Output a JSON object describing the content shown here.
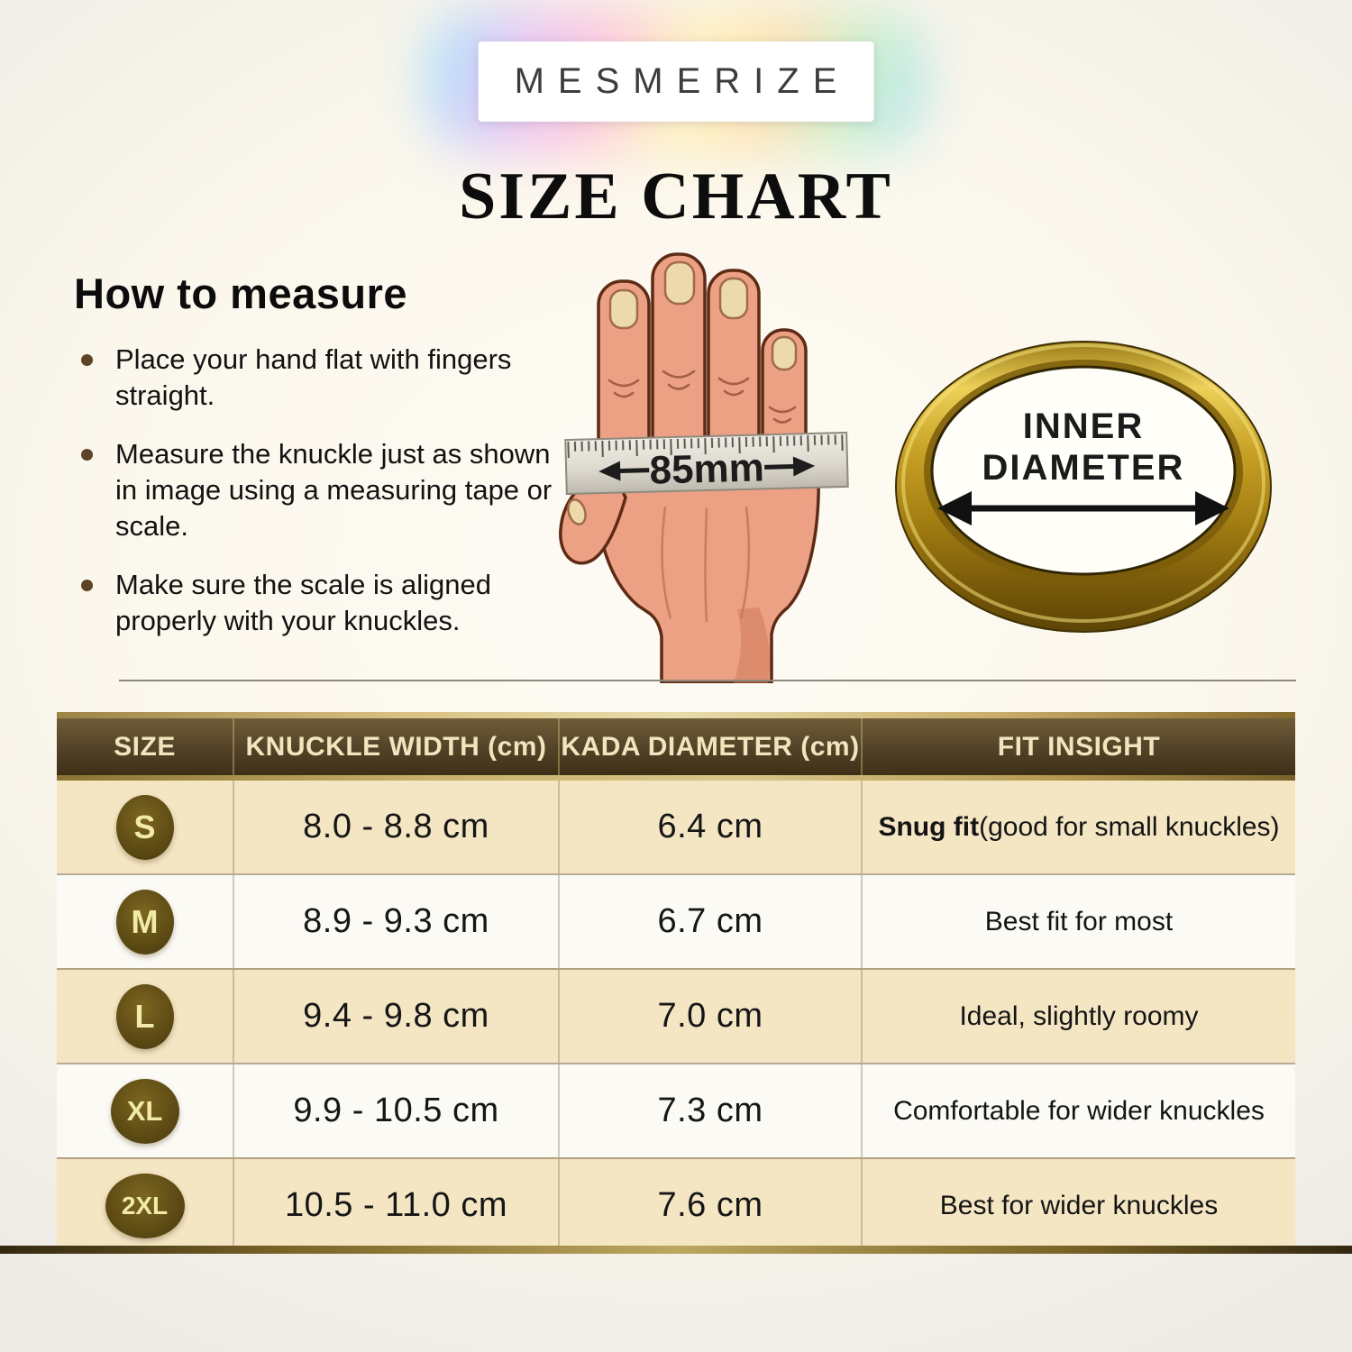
{
  "brand": {
    "name": "MESMERIZE"
  },
  "title": "SIZE CHART",
  "how_to_measure": {
    "heading": "How to measure",
    "bullets": [
      "Place your hand flat with fingers straight.",
      "Measure the knuckle just as shown in image using a measuring tape or scale.",
      "Make sure the scale is aligned properly with your knuckles."
    ]
  },
  "hand": {
    "measurement_label": "85mm"
  },
  "ring": {
    "label_line1": "INNER",
    "label_line2": "DIAMETER"
  },
  "table": {
    "headers": [
      "SIZE",
      "KNUCKLE WIDTH (cm)",
      "KADA DIAMETER (cm)",
      "FIT INSIGHT"
    ],
    "rows": [
      {
        "size": "S",
        "knuckle_width": "8.0 - 8.8 cm",
        "kada_diameter": "6.4 cm",
        "fit_bold": "Snug fit",
        "fit_rest": " (good for small knuckles)"
      },
      {
        "size": "M",
        "knuckle_width": "8.9 - 9.3 cm",
        "kada_diameter": "6.7 cm",
        "fit": "Best fit for most"
      },
      {
        "size": "L",
        "knuckle_width": "9.4 - 9.8 cm",
        "kada_diameter": "7.0 cm",
        "fit": "Ideal, slightly roomy"
      },
      {
        "size": "XL",
        "knuckle_width": "9.9 - 10.5 cm",
        "kada_diameter": "7.3 cm",
        "fit": "Comfortable for wider knuckles"
      },
      {
        "size": "2XL",
        "knuckle_width": "10.5 - 11.0 cm",
        "kada_diameter": "7.6 cm",
        "fit": "Best for wider knuckles"
      }
    ]
  },
  "colors": {
    "header_brown": "#57462a",
    "row_cream": "#f4e5c3",
    "row_white": "#fbfaf5",
    "badge_olive": "#5c4a14",
    "badge_text": "#f2eaa8",
    "gold_accent": "#c9b06a",
    "gold_ring": "#c7a125",
    "skin": "#eda184",
    "bullet_brown": "#5e4326"
  }
}
